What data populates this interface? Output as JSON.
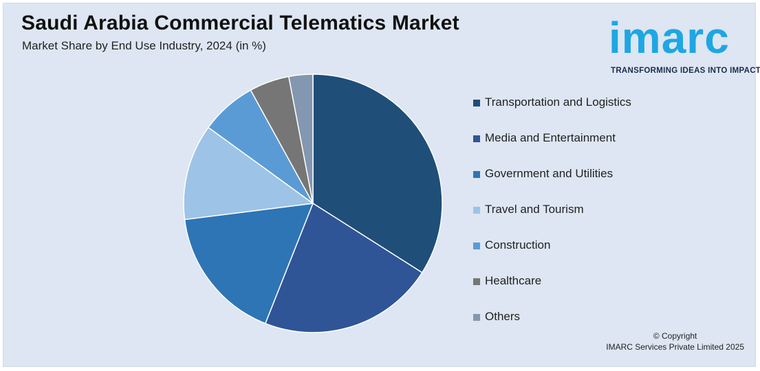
{
  "header": {
    "title": "Saudi Arabia Commercial Telematics Market",
    "subtitle": "Market Share by End Use Industry, 2024 (in %)"
  },
  "logo": {
    "wordmark": "imarc",
    "tagline": "TRANSFORMING IDEAS INTO IMPACT",
    "color": "#1ea7e2"
  },
  "chart_data": {
    "type": "pie",
    "title": "Saudi Arabia Commercial Telematics Market",
    "subtitle": "Market Share by End Use Industry, 2024 (in %)",
    "legend_position": "right",
    "series": [
      {
        "name": "Transportation and Logistics",
        "value": 34,
        "color": "#1f4e79"
      },
      {
        "name": "Media and Entertainment",
        "value": 22,
        "color": "#2f5597"
      },
      {
        "name": "Government and Utilities",
        "value": 17,
        "color": "#2e75b6"
      },
      {
        "name": "Travel and Tourism",
        "value": 12,
        "color": "#9dc3e6"
      },
      {
        "name": "Construction",
        "value": 7,
        "color": "#5b9bd5"
      },
      {
        "name": "Healthcare",
        "value": 5,
        "color": "#767676"
      },
      {
        "name": "Others",
        "value": 3,
        "color": "#8497b0"
      }
    ]
  },
  "footer": {
    "copyright_line1": "© Copyright",
    "copyright_line2": "IMARC Services Private Limited 2025"
  }
}
